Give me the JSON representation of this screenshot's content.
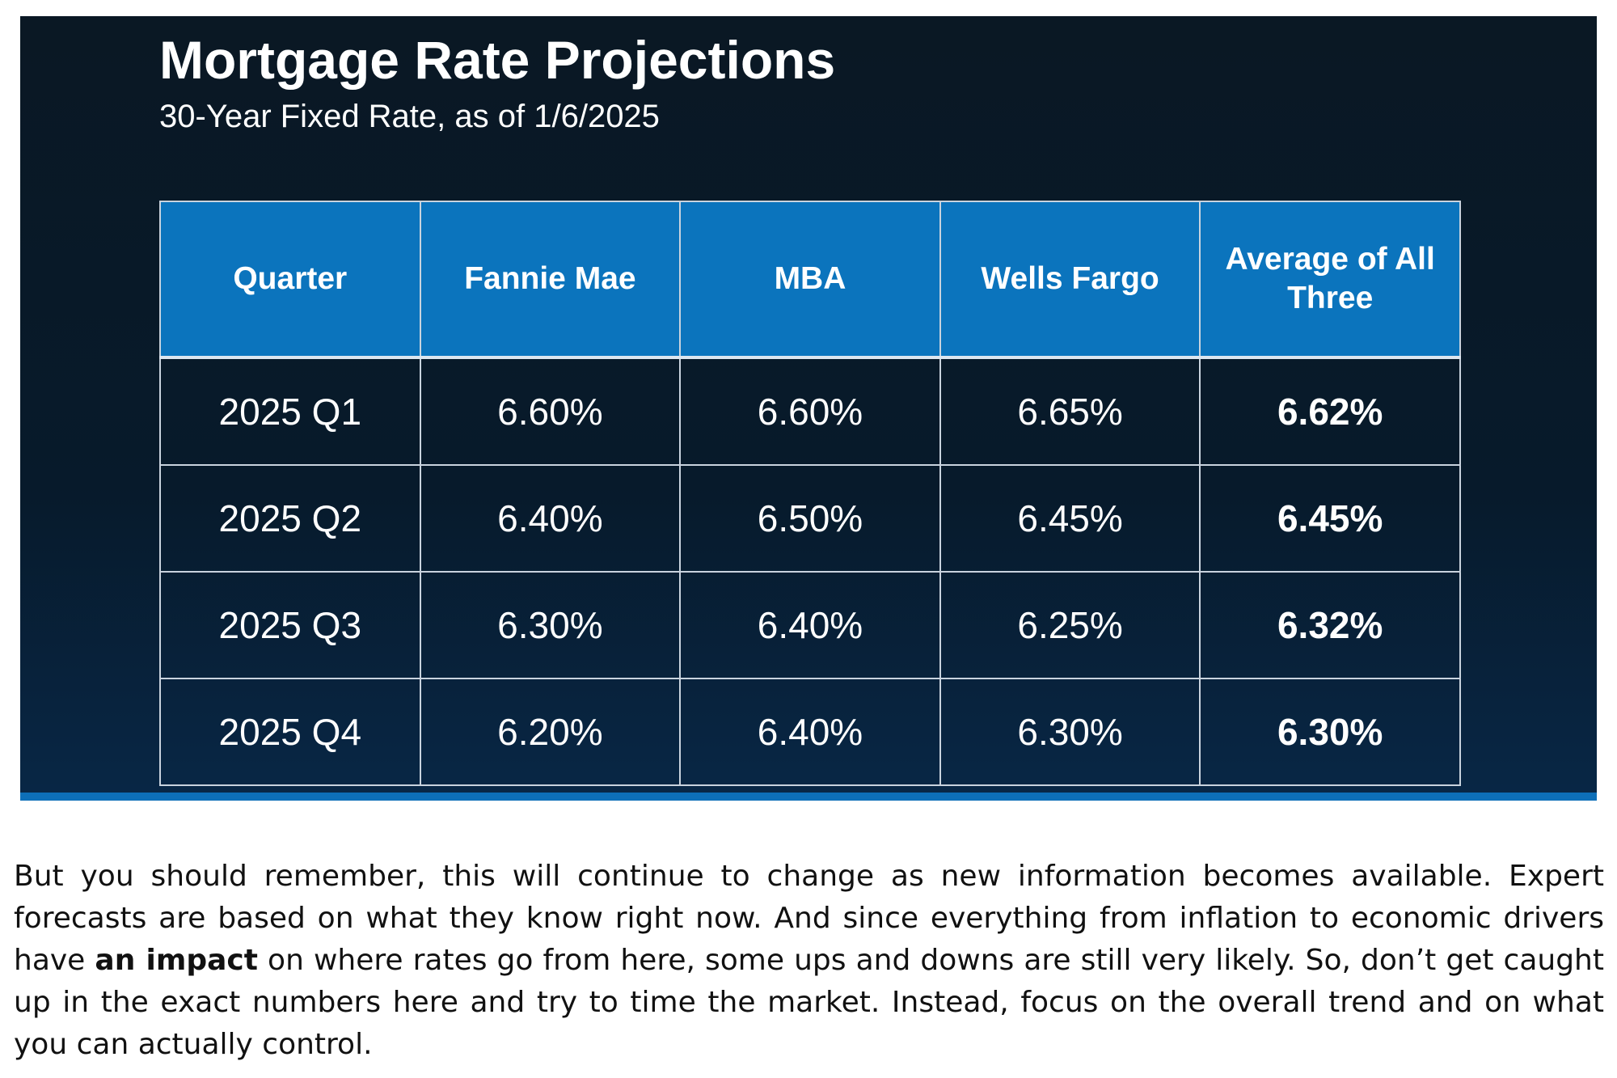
{
  "chart_data": {
    "type": "table",
    "title": "Mortgage Rate Projections",
    "subtitle": "30-Year Fixed Rate, as of 1/6/2025",
    "columns": [
      "Quarter",
      "Fannie Mae",
      "MBA",
      "Wells Fargo",
      "Average of All Three"
    ],
    "rows": [
      {
        "quarter": "2025 Q1",
        "fannie_mae": "6.60%",
        "mba": "6.60%",
        "wells_fargo": "6.65%",
        "average": "6.62%"
      },
      {
        "quarter": "2025 Q2",
        "fannie_mae": "6.40%",
        "mba": "6.50%",
        "wells_fargo": "6.45%",
        "average": "6.45%"
      },
      {
        "quarter": "2025 Q3",
        "fannie_mae": "6.30%",
        "mba": "6.40%",
        "wells_fargo": "6.25%",
        "average": "6.32%"
      },
      {
        "quarter": "2025 Q4",
        "fannie_mae": "6.20%",
        "mba": "6.40%",
        "wells_fargo": "6.30%",
        "average": "6.30%"
      }
    ],
    "colors": {
      "header": "#0b74bd",
      "background": "#071a2b",
      "grid": "#c9d3de",
      "accent": "#0d6fb8"
    }
  },
  "article": {
    "text_before": "But you should remember, this will continue to change as new information becomes available. Expert forecasts are based on what they know right now. And since everything from inflation to economic drivers have ",
    "bold": "an impact",
    "text_after": " on where rates go from here, some ups and downs are still very likely. So, don’t get caught up in the exact numbers here and try to time the market. Instead, focus on the overall trend and on what you can actually control."
  }
}
